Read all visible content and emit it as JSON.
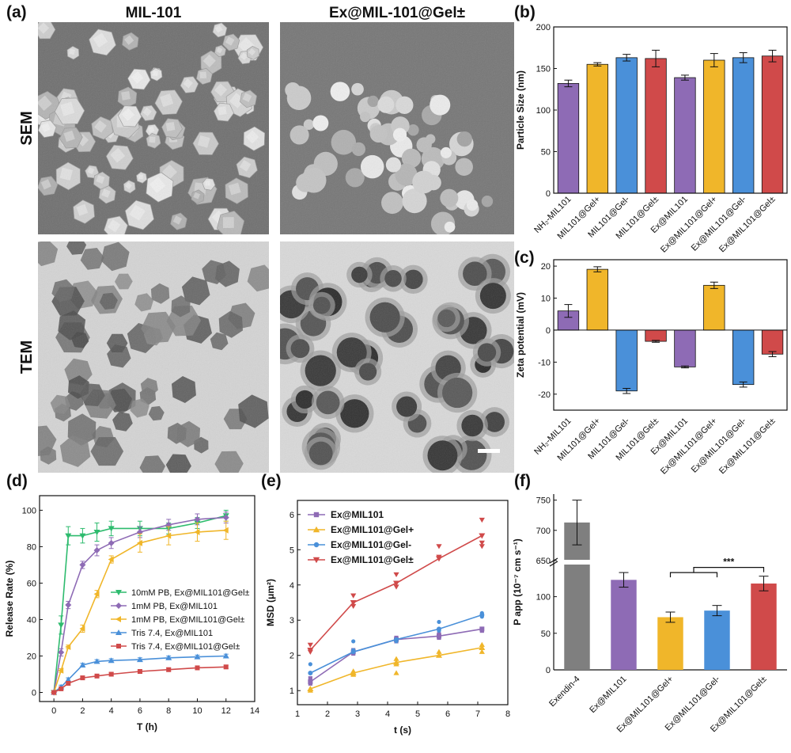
{
  "panel_labels": {
    "a": "(a)",
    "b": "(b)",
    "c": "(c)",
    "d": "(d)",
    "e": "(e)",
    "f": "(f)"
  },
  "micrographs": {
    "col_labels": [
      "MIL-101",
      "Ex@MIL-101@Gel±"
    ],
    "row_labels": [
      "SEM",
      "TEM"
    ]
  },
  "colors": {
    "purple": "#8e6bb5",
    "yellow": "#f0b62a",
    "blue": "#4a90d9",
    "red": "#d04a4a",
    "gray": "#7f7f7f",
    "green": "#2ebb6e",
    "sem_bg": "#6e6e6e",
    "tem_bg": "#d6d6d6"
  },
  "chart_data": [
    {
      "id": "b",
      "type": "bar",
      "ylabel": "Particle Size (nm)",
      "ylim": [
        0,
        200
      ],
      "yticks": [
        0,
        50,
        100,
        150,
        200
      ],
      "categories": [
        "NH₂-MIL101",
        "MIL101@Gel+",
        "MIL101@Gel-",
        "MIL101@Gel±",
        "Ex@MIL101",
        "Ex@MIL101@Gel+",
        "Ex@MIL101@Gel-",
        "Ex@MIL101@Gel±"
      ],
      "values": [
        132,
        155,
        163,
        162,
        139,
        160,
        163,
        165
      ],
      "errors": [
        4,
        2,
        4,
        10,
        3,
        8,
        6,
        7
      ],
      "bar_colors": [
        "purple",
        "yellow",
        "blue",
        "red",
        "purple",
        "yellow",
        "blue",
        "red"
      ]
    },
    {
      "id": "c",
      "type": "bar",
      "ylabel": "Zeta potential (mV)",
      "ylim": [
        -25,
        22
      ],
      "yticks": [
        -20,
        -10,
        0,
        10,
        20
      ],
      "categories": [
        "NH₂-MIL101",
        "MIL101@Gel+",
        "MIL101@Gel-",
        "MIL101@Gel±",
        "Ex@MIL101",
        "Ex@MIL101@Gel+",
        "Ex@MIL101@Gel-",
        "Ex@MIL101@Gel±"
      ],
      "values": [
        6,
        19,
        -19,
        -3.5,
        -11.5,
        14,
        -17,
        -7.5
      ],
      "errors": [
        2,
        0.8,
        0.8,
        0.3,
        0.3,
        1,
        0.8,
        0.8
      ],
      "bar_colors": [
        "purple",
        "yellow",
        "blue",
        "red",
        "purple",
        "yellow",
        "blue",
        "red"
      ]
    },
    {
      "id": "d",
      "type": "line",
      "xlabel": "T (h)",
      "ylabel": "Release Rate (%)",
      "xlim": [
        -1,
        14
      ],
      "ylim": [
        -5,
        108
      ],
      "xticks": [
        0,
        2,
        4,
        6,
        8,
        10,
        12,
        14
      ],
      "yticks": [
        0,
        20,
        40,
        60,
        80,
        100
      ],
      "x": [
        0,
        0.5,
        1,
        2,
        3,
        4,
        6,
        8,
        10,
        12
      ],
      "series": [
        {
          "name": "10mM PB, Ex@MIL101@Gel±",
          "color": "green",
          "marker": "tri-down",
          "values": [
            0,
            37,
            86,
            86,
            88,
            90,
            90,
            90,
            93,
            97
          ],
          "errors": [
            0,
            5,
            5,
            4,
            5,
            4,
            4,
            3,
            3,
            3
          ]
        },
        {
          "name": "1mM PB, Ex@MIL101",
          "color": "purple",
          "marker": "diamond",
          "values": [
            0,
            22,
            48,
            70,
            78,
            82,
            88,
            92,
            95,
            96
          ],
          "errors": [
            0,
            2,
            2,
            2,
            3,
            3,
            3,
            3,
            3,
            3
          ]
        },
        {
          "name": "1mM PB, Ex@MIL101@Gel±",
          "color": "yellow",
          "marker": "tri-left",
          "values": [
            0,
            12,
            25,
            35,
            54,
            73,
            82,
            86,
            88,
            89
          ],
          "errors": [
            0,
            1,
            1,
            2,
            2,
            2,
            5,
            5,
            5,
            5
          ]
        },
        {
          "name": "Tris 7.4, Ex@MIL101",
          "color": "blue",
          "marker": "triangle",
          "values": [
            0,
            3,
            7,
            15,
            17,
            17.5,
            18,
            19,
            19.5,
            20
          ],
          "errors": [
            0,
            1,
            1,
            1,
            1,
            1,
            1,
            1,
            1,
            1
          ]
        },
        {
          "name": "Tris 7.4, Ex@MIL101@Gel±",
          "color": "red",
          "marker": "square",
          "values": [
            0,
            2,
            5,
            8,
            9,
            10,
            11.5,
            12.5,
            13.5,
            14
          ],
          "errors": [
            0,
            1,
            1,
            1,
            1,
            1,
            1,
            1,
            1,
            1
          ]
        }
      ]
    },
    {
      "id": "e",
      "type": "line",
      "xlabel": "t (s)",
      "ylabel": "MSD (μm²)",
      "xlim": [
        1,
        8
      ],
      "ylim": [
        0.6,
        6.4
      ],
      "xticks": [
        1,
        2,
        3,
        4,
        5,
        6,
        7,
        8
      ],
      "yticks": [
        1,
        2,
        3,
        4,
        5,
        6
      ],
      "x": [
        1.43,
        2.86,
        4.29,
        5.71,
        7.14
      ],
      "series": [
        {
          "name": "Ex@MIL101",
          "color": "purple",
          "marker": "square",
          "values": [
            1.25,
            2.1,
            2.45,
            2.55,
            2.75
          ],
          "scatter": [
            [
              1.43,
              1.35
            ],
            [
              1.43,
              1.2
            ],
            [
              2.86,
              2.05
            ],
            [
              2.86,
              2.15
            ],
            [
              4.29,
              2.4
            ],
            [
              4.29,
              2.5
            ],
            [
              5.71,
              2.6
            ],
            [
              5.71,
              2.5
            ],
            [
              7.14,
              2.75
            ],
            [
              7.14,
              2.7
            ]
          ]
        },
        {
          "name": "Ex@MIL101@Gel+",
          "color": "yellow",
          "marker": "triangle",
          "values": [
            1.05,
            1.5,
            1.8,
            2.0,
            2.22
          ],
          "scatter": [
            [
              1.43,
              1.05
            ],
            [
              1.43,
              1.0
            ],
            [
              2.86,
              1.45
            ],
            [
              2.86,
              1.55
            ],
            [
              4.29,
              1.75
            ],
            [
              4.29,
              1.9
            ],
            [
              4.29,
              1.5
            ],
            [
              5.71,
              2.0
            ],
            [
              5.71,
              2.1
            ],
            [
              7.14,
              2.3
            ],
            [
              7.14,
              2.1
            ]
          ]
        },
        {
          "name": "Ex@MIL101@Gel-",
          "color": "blue",
          "marker": "circle",
          "values": [
            1.5,
            2.1,
            2.45,
            2.75,
            3.15
          ],
          "scatter": [
            [
              1.43,
              1.75
            ],
            [
              1.43,
              1.5
            ],
            [
              2.86,
              2.15
            ],
            [
              2.86,
              2.4
            ],
            [
              4.29,
              2.45
            ],
            [
              4.29,
              2.4
            ],
            [
              5.71,
              2.95
            ],
            [
              5.71,
              2.7
            ],
            [
              7.14,
              3.2
            ],
            [
              7.14,
              3.1
            ]
          ]
        },
        {
          "name": "Ex@MIL101@Gel±",
          "color": "red",
          "marker": "tri-down",
          "values": [
            2.15,
            3.5,
            4.05,
            4.75,
            5.4
          ],
          "scatter": [
            [
              1.43,
              2.3
            ],
            [
              1.43,
              2.1
            ],
            [
              2.86,
              3.7
            ],
            [
              2.86,
              3.4
            ],
            [
              4.29,
              4.3
            ],
            [
              4.29,
              3.95
            ],
            [
              5.71,
              5.1
            ],
            [
              5.71,
              4.8
            ],
            [
              7.14,
              5.85
            ],
            [
              7.14,
              5.2
            ],
            [
              7.14,
              5.1
            ]
          ]
        }
      ]
    },
    {
      "id": "f",
      "type": "bar",
      "ylabel": "P app (10⁻⁷ cm s⁻¹)",
      "ylim_lower": [
        0,
        145
      ],
      "ylim_upper": [
        650,
        760
      ],
      "yticks_lower": [
        0,
        50,
        100
      ],
      "yticks_upper": [
        650,
        700,
        750
      ],
      "categories": [
        "Exendin-4",
        "Ex@MIL101",
        "Ex@MIL101@Gel+",
        "Ex@MIL101@Gel-",
        "Ex@MIL101@Gel±"
      ],
      "values": [
        713,
        123,
        72,
        81,
        118
      ],
      "errors": [
        37,
        10,
        7,
        7,
        10
      ],
      "bar_colors": [
        "gray",
        "purple",
        "yellow",
        "blue",
        "red"
      ],
      "annotation": "***"
    }
  ]
}
